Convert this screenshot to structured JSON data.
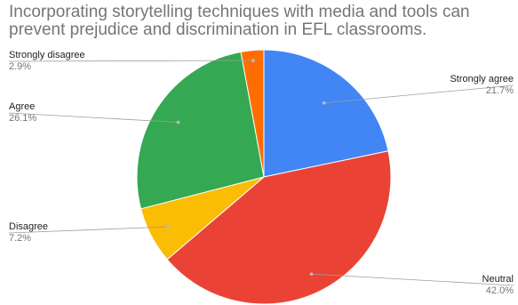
{
  "chart_data": {
    "type": "pie",
    "title": "Incorporating storytelling techniques with media and tools can prevent prejudice and discrimination in EFL classrooms.",
    "start_angle_deg": 0,
    "direction": "clockwise",
    "slices": [
      {
        "label": "Strongly agree",
        "value": 21.7,
        "display": "21.7%",
        "color": "#4285f4"
      },
      {
        "label": "Neutral",
        "value": 42.0,
        "display": "42.0%",
        "color": "#ea4335"
      },
      {
        "label": "Disagree",
        "value": 7.2,
        "display": "7.2%",
        "color": "#fbbc04"
      },
      {
        "label": "Agree",
        "value": 26.1,
        "display": "26.1%",
        "color": "#34a853"
      },
      {
        "label": "Strongly disagree",
        "value": 2.9,
        "display": "2.9%",
        "color": "#ff6d01"
      }
    ]
  }
}
